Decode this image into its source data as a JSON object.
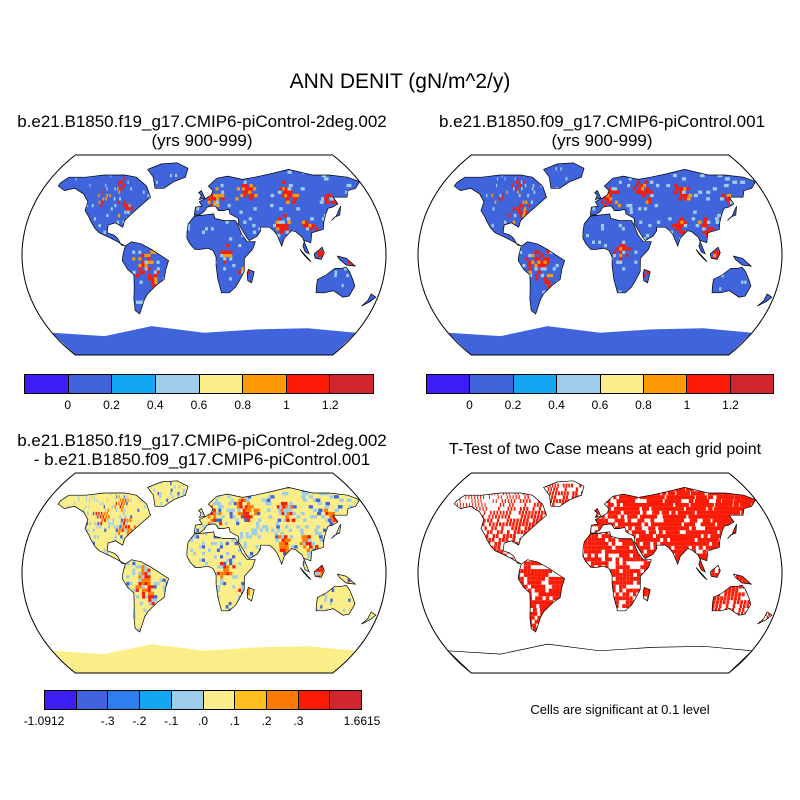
{
  "title": "ANN DENIT (gN/m^2/y)",
  "panels": {
    "top_left": {
      "title_line1": "b.e21.B1850.f19_g17.CMIP6-piControl-2deg.002",
      "title_line2": "(yrs 900-999)"
    },
    "top_right": {
      "title_line1": "b.e21.B1850.f09_g17.CMIP6-piControl.001",
      "title_line2": "(yrs 900-999)"
    },
    "bottom_left": {
      "title_line1": "b.e21.B1850.f19_g17.CMIP6-piControl-2deg.002",
      "title_line2": "- b.e21.B1850.f09_g17.CMIP6-piControl.001"
    },
    "bottom_right": {
      "title_line1": "T-Test of two Case means at each grid point",
      "note": "Cells are significant at 0.1 level"
    }
  },
  "colorbars": {
    "case": {
      "colors": [
        "#3a1ef5",
        "#3f64db",
        "#12a6f3",
        "#9dcdeb",
        "#fbee88",
        "#fd9a05",
        "#fb1b06",
        "#d2262e"
      ],
      "labels": [
        "0",
        "0.2",
        "0.4",
        "0.6",
        "0.8",
        "1",
        "1.2"
      ]
    },
    "diff": {
      "colors": [
        "#3a1ef5",
        "#3f64db",
        "#2e7ef0",
        "#12a6f3",
        "#9dcdeb",
        "#fbee88",
        "#fdbe1e",
        "#fd7a05",
        "#fb1b06",
        "#d2262e"
      ],
      "labels": [
        "-1.0912",
        "-.3",
        "-.2",
        "-.1",
        ".0",
        ".1",
        ".2",
        ".3",
        "1.6615"
      ]
    }
  },
  "map_colors": {
    "ocean": "#ffffff",
    "top_land_base": "#3f64db",
    "top_land_high": "#fb1b06",
    "top_land_mid": "#fd9a05",
    "diff_land_base": "#fbee88",
    "diff_land_pos": "#fb1b06",
    "diff_land_neg": "#9dcdeb",
    "ttest_sig": "#fb1b06",
    "antarctica_top": "#3f64db",
    "antarctica_diff": "#fbee88"
  }
}
